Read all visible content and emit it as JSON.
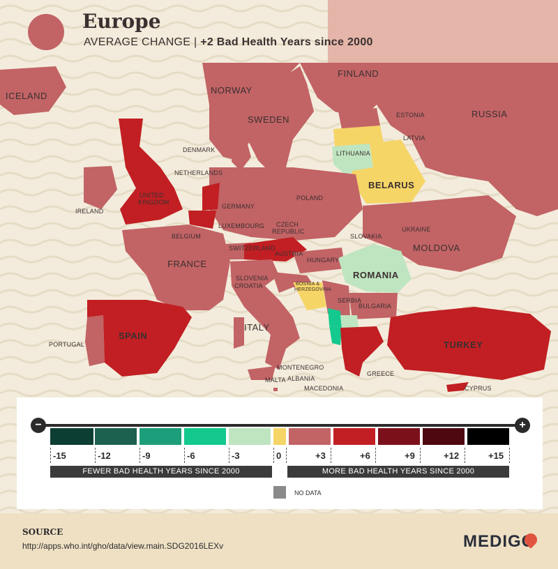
{
  "header": {
    "title": "Europe",
    "subtitle_prefix": "AVERAGE CHANGE | ",
    "subtitle_value": "+2 Bad Health Years since 2000"
  },
  "colors": {
    "sea": "#f3ecdc",
    "no_data": "#8a8a8a",
    "plus3": "#c26365",
    "plus6": "#c11f23",
    "plus9": "#7b101b",
    "plus12": "#4d0810",
    "plus15": "#000000",
    "zero": "#f6d567",
    "minus3": "#bfe5c0",
    "minus6": "#14c98e",
    "minus9": "#1d9e7a",
    "minus12": "#1c6050",
    "minus15": "#0d3e34"
  },
  "countries": [
    {
      "name": "ICELAND",
      "band": "+3"
    },
    {
      "name": "NORWAY",
      "band": "+3"
    },
    {
      "name": "SWEDEN",
      "band": "+3"
    },
    {
      "name": "FINLAND",
      "band": "+3"
    },
    {
      "name": "RUSSIA",
      "band": "+3"
    },
    {
      "name": "ESTONIA",
      "band": "+3"
    },
    {
      "name": "LATVIA",
      "band": "0"
    },
    {
      "name": "LITHUANIA",
      "band": "-3"
    },
    {
      "name": "BELARUS",
      "band": "0"
    },
    {
      "name": "DENMARK",
      "band": "+3"
    },
    {
      "name": "NETHERLANDS",
      "band": "+6"
    },
    {
      "name": "UNITED KINGDOM",
      "band": "+6"
    },
    {
      "name": "IRELAND",
      "band": "+3"
    },
    {
      "name": "GERMANY",
      "band": "+3"
    },
    {
      "name": "POLAND",
      "band": "+3"
    },
    {
      "name": "BELGIUM",
      "band": "+6"
    },
    {
      "name": "LUXEMBOURG",
      "band": "+3"
    },
    {
      "name": "CZECH REPUBLIC",
      "band": "+3"
    },
    {
      "name": "SLOVAKIA",
      "band": "+3"
    },
    {
      "name": "UKRAINE",
      "band": "+3"
    },
    {
      "name": "MOLDOVA",
      "band": "+3"
    },
    {
      "name": "FRANCE",
      "band": "+3"
    },
    {
      "name": "SWITZERLAND",
      "band": "+3"
    },
    {
      "name": "AUSTRIA",
      "band": "+6"
    },
    {
      "name": "HUNGARY",
      "band": "+3"
    },
    {
      "name": "ROMANIA",
      "band": "-3"
    },
    {
      "name": "SLOVENIA",
      "band": "+3"
    },
    {
      "name": "CROATIA",
      "band": "+3"
    },
    {
      "name": "BOSNIA & HERZEGOVINA",
      "band": "0"
    },
    {
      "name": "SERBIA",
      "band": "+3"
    },
    {
      "name": "BULGARIA",
      "band": "+3"
    },
    {
      "name": "SPAIN",
      "band": "+6"
    },
    {
      "name": "PORTUGAL",
      "band": "+3"
    },
    {
      "name": "ITALY",
      "band": "+3"
    },
    {
      "name": "MONTENEGRO",
      "band": "-6"
    },
    {
      "name": "ALBANIA",
      "band": "-6"
    },
    {
      "name": "MACEDONIA",
      "band": "-3"
    },
    {
      "name": "GREECE",
      "band": "+6"
    },
    {
      "name": "MALTA",
      "band": "+3"
    },
    {
      "name": "TURKEY",
      "band": "+6"
    },
    {
      "name": "CYPRUS",
      "band": "+6"
    }
  ],
  "labels": {
    "iceland": "ICELAND",
    "norway": "NORWAY",
    "sweden": "SWEDEN",
    "finland": "FINLAND",
    "russia": "RUSSIA",
    "estonia": "ESTONIA",
    "latvia": "LATVIA",
    "lithuania": "LITHUANIA",
    "belarus": "BELARUS",
    "denmark": "DENMARK",
    "netherlands": "NETHERLANDS",
    "uk_line1": "UNITED",
    "uk_line2": "KINGDOM",
    "ireland": "IRELAND",
    "germany": "GERMANY",
    "poland": "POLAND",
    "belgium": "BELGIUM",
    "luxembourg": "LUXEMBOURG",
    "czech_line1": "CZECH",
    "czech_line2": "REPUBLIC",
    "slovakia": "SLOVAKIA",
    "ukraine": "UKRAINE",
    "moldova": "MOLDOVA",
    "france": "FRANCE",
    "switzerland": "SWITZERLAND",
    "austria": "AUSTRIA",
    "hungary": "HUNGARY",
    "romania": "ROMANIA",
    "slovenia": "SLOVENIA",
    "croatia": "CROATIA",
    "bosnia_line1": "BOSNIA &",
    "bosnia_line2": "HERZEGOVINA",
    "serbia": "SERBIA",
    "bulgaria": "BULGARIA",
    "spain": "SPAIN",
    "portugal": "PORTUGAL",
    "italy": "ITALY",
    "montenegro": "MONTENEGRO",
    "albania": "ALBANIA",
    "macedonia": "MACEDONIA",
    "greece": "GREECE",
    "malta": "MALTA",
    "turkey": "TURKEY",
    "cyprus": "CYPRUS"
  },
  "legend": {
    "ticks": [
      "-15",
      "-12",
      "-9",
      "-6",
      "-3",
      "0",
      "+3",
      "+6",
      "+9",
      "+12",
      "+15"
    ],
    "fewer_label": "FEWER BAD HEALTH YEARS SINCE 2000",
    "more_label": "MORE BAD HEALTH YEARS SINCE 2000",
    "no_data_label": "NO DATA",
    "minus_symbol": "−",
    "plus_symbol": "+"
  },
  "footer": {
    "source_heading": "SOURCE",
    "source_url": "http://apps.who.int/gho/data/view.main.SDG2016LEXv",
    "brand": "MEDIGO"
  }
}
